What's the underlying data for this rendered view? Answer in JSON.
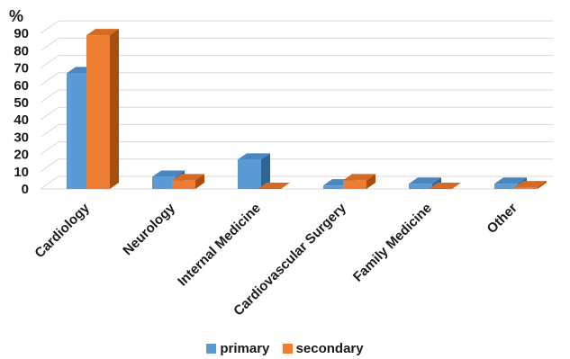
{
  "chart_data": {
    "type": "bar",
    "unit_label": "%",
    "categories": [
      "Cardiology",
      "Neurology",
      "Internal Medicine",
      "Cardiovascular Surgery",
      "Family Medicine",
      "Other"
    ],
    "series": [
      {
        "name": "primary",
        "values": [
          67,
          7,
          17,
          2,
          3,
          3
        ]
      },
      {
        "name": "secondary",
        "values": [
          89,
          5,
          0,
          5,
          0,
          1
        ]
      }
    ],
    "yticks": [
      0,
      10,
      20,
      30,
      40,
      50,
      60,
      70,
      80,
      90
    ],
    "ylim": [
      0,
      90
    ],
    "grid": true,
    "legend_position": "bottom",
    "colors": {
      "primary_front": "#5b9bd5",
      "primary_top": "#4a86c0",
      "primary_side": "#2f6494",
      "secondary_front": "#ed7d31",
      "secondary_top": "#d56a22",
      "secondary_side": "#a64e12",
      "grid": "#d9d9d9"
    }
  }
}
